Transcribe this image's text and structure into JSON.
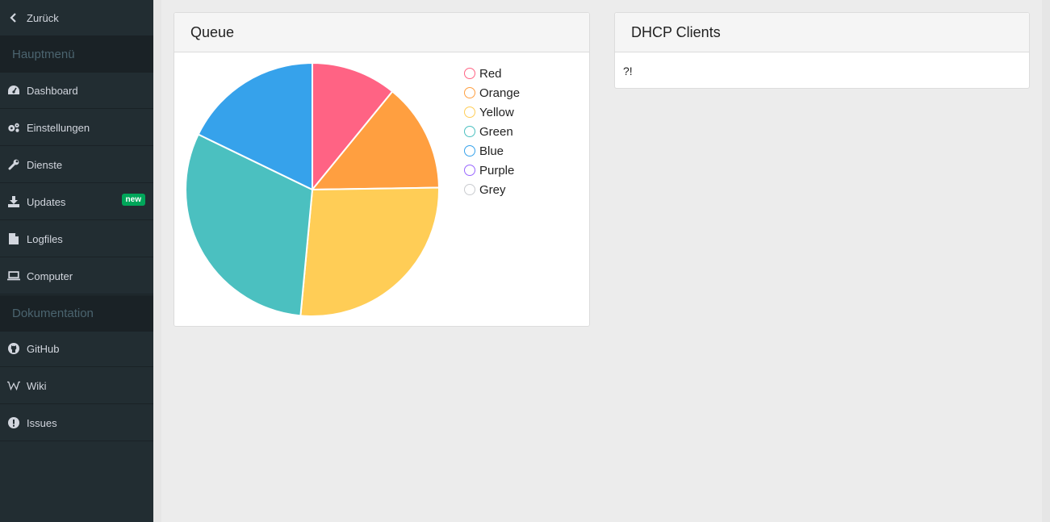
{
  "sidebar": {
    "back": "Zurück",
    "main_header": "Hauptmenü",
    "items": [
      {
        "label": "Dashboard",
        "icon": "dashboard-icon"
      },
      {
        "label": "Einstellungen",
        "icon": "cogs-icon"
      },
      {
        "label": "Dienste",
        "icon": "wrench-icon"
      },
      {
        "label": "Updates",
        "icon": "download-icon",
        "badge": "new"
      },
      {
        "label": "Logfiles",
        "icon": "file-icon"
      },
      {
        "label": "Computer",
        "icon": "laptop-icon"
      }
    ],
    "doc_header": "Dokumentation",
    "doc_items": [
      {
        "label": "GitHub",
        "icon": "github-icon"
      },
      {
        "label": "Wiki",
        "icon": "wikipedia-icon"
      },
      {
        "label": "Issues",
        "icon": "exclamation-circle-icon"
      }
    ]
  },
  "queue_panel": {
    "title": "Queue"
  },
  "dhcp_panel": {
    "title": "DHCP Clients",
    "body": "?!"
  },
  "chart_data": {
    "type": "pie",
    "categories": [
      "Red",
      "Orange",
      "Yellow",
      "Green",
      "Blue",
      "Purple",
      "Grey"
    ],
    "values": [
      11,
      14,
      27,
      31,
      18,
      0,
      0
    ],
    "colors": [
      "#ff6384",
      "#ff9f40",
      "#ffcd56",
      "#4bc0c0",
      "#36a2eb",
      "#9966ff",
      "#c9cbcf"
    ],
    "legend": "right"
  }
}
